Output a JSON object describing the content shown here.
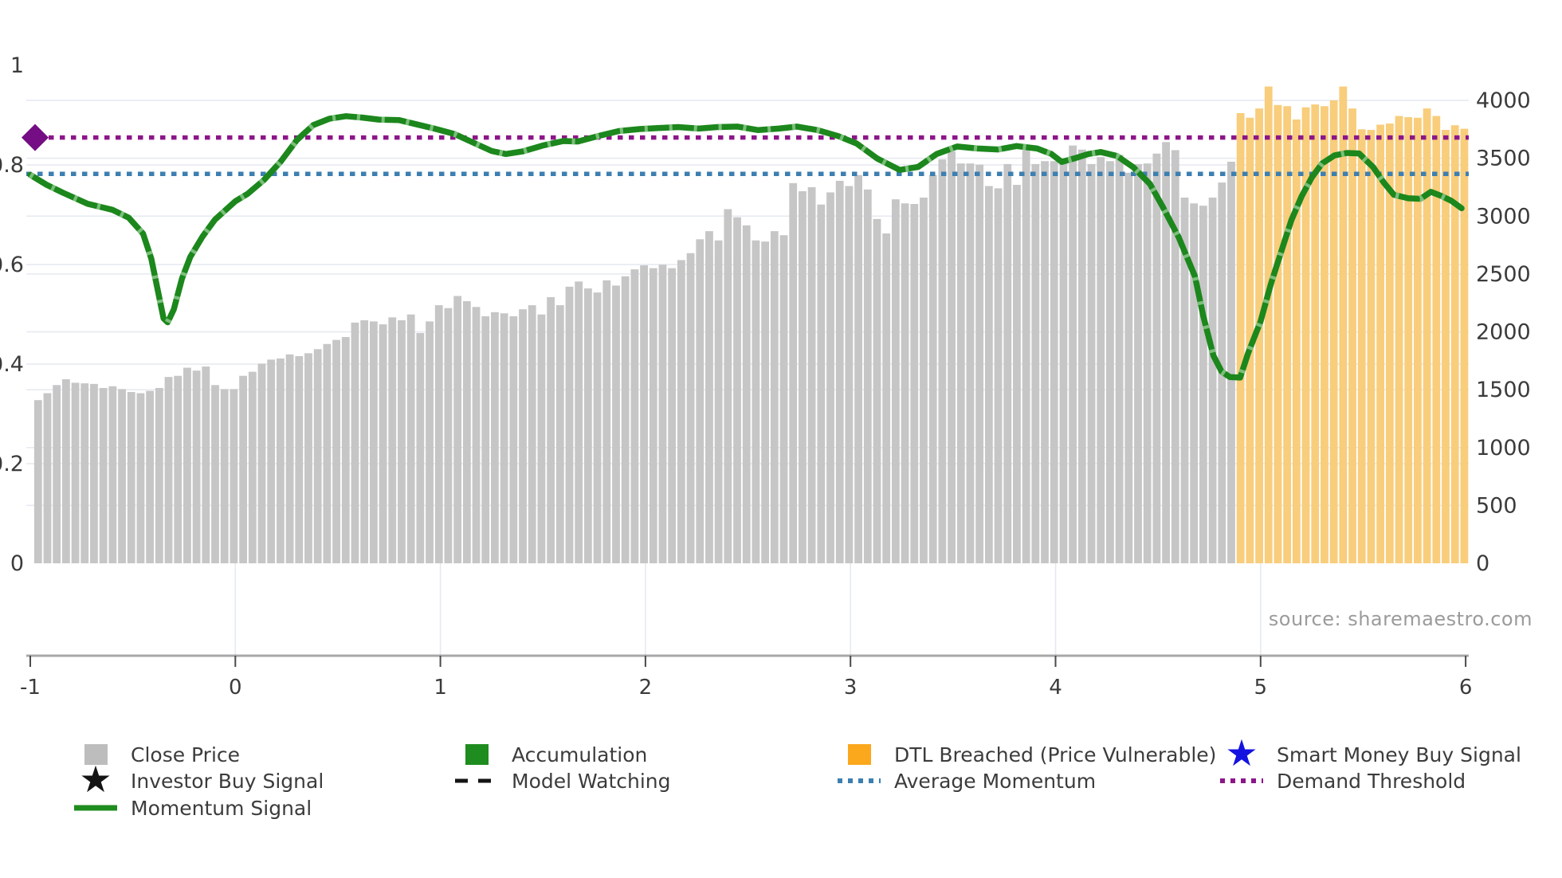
{
  "figure": {
    "source_text": "source: sharemaestro.com"
  },
  "colors": {
    "close_price_bar": "#c6c6c6",
    "dtl_breached_bar": "#f8cd7c",
    "dtl_breached_legend": "#fba81d",
    "close_price_legend": "#bdbdbd",
    "accumulation_green": "#1e8c1e",
    "momentum_line": "#1c871c",
    "momentum_light_overlay": "#8cc98c",
    "average_momentum_blue": "#3d7fb0",
    "demand_threshold_purple": "#8c1689",
    "investor_marker_purple": "#750d84",
    "smart_money_star_blue": "#1412e0",
    "black": "#141414",
    "grid_line": "#e6e9f0",
    "axis_spine": "#a8a8a8",
    "tick_text": "#3b3b3b",
    "source_text": "#9b9b9b"
  },
  "chart_data": {
    "type": "bar+line",
    "title": "",
    "xlabel": "",
    "ylabel_left": "",
    "ylabel_right": "",
    "grid": true,
    "legend_position": "below",
    "x_axis": {
      "min": -1,
      "max": 6,
      "ticks": [
        -1,
        0,
        1,
        2,
        3,
        4,
        5,
        6
      ],
      "tick_labels": [
        "-1",
        "0",
        "1",
        "2",
        "3",
        "4",
        "5",
        "6"
      ]
    },
    "left_axis": {
      "min": 0,
      "max": 1,
      "ticks": [
        0,
        0.2,
        0.4,
        0.6,
        0.8,
        1
      ],
      "tick_labels": [
        "0",
        "0.2",
        "0.4",
        "0.6",
        "0.8",
        "1"
      ]
    },
    "right_axis": {
      "min": 0,
      "max": 4000,
      "ticks": [
        0,
        500,
        1000,
        1500,
        2000,
        2500,
        3000,
        3500,
        4000
      ],
      "tick_labels": [
        "0",
        "500",
        "1000",
        "1500",
        "2000",
        "2500",
        "3000",
        "3500",
        "4000"
      ]
    },
    "close_price_bars": {
      "axis": "right",
      "x_start": -0.962,
      "x_step": 0.04546,
      "dtl_breached_start_index": 129,
      "values": [
        1410,
        1470,
        1540,
        1590,
        1560,
        1555,
        1550,
        1515,
        1530,
        1505,
        1480,
        1470,
        1490,
        1515,
        1610,
        1620,
        1690,
        1665,
        1700,
        1540,
        1505,
        1505,
        1620,
        1655,
        1725,
        1760,
        1770,
        1805,
        1790,
        1815,
        1850,
        1895,
        1930,
        1955,
        2080,
        2100,
        2090,
        2065,
        2125,
        2100,
        2150,
        1990,
        2090,
        2230,
        2205,
        2310,
        2265,
        2215,
        2135,
        2170,
        2160,
        2135,
        2195,
        2230,
        2150,
        2300,
        2230,
        2390,
        2435,
        2375,
        2340,
        2445,
        2400,
        2480,
        2540,
        2575,
        2550,
        2580,
        2550,
        2620,
        2680,
        2800,
        2870,
        2790,
        3060,
        2990,
        2920,
        2790,
        2780,
        2870,
        2835,
        3285,
        3215,
        3250,
        3100,
        3205,
        3305,
        3260,
        3355,
        3230,
        2975,
        2850,
        3145,
        3110,
        3105,
        3160,
        3355,
        3490,
        3560,
        3455,
        3455,
        3445,
        3260,
        3240,
        3450,
        3270,
        3570,
        3450,
        3475,
        3475,
        3500,
        3610,
        3575,
        3450,
        3510,
        3475,
        3530,
        3375,
        3450,
        3455,
        3540,
        3640,
        3570,
        3160,
        3110,
        3090,
        3160,
        3290,
        3470,
        3890,
        3850,
        3930,
        4120,
        3960,
        3950,
        3835,
        3940,
        3965,
        3950,
        4000,
        4120,
        3930,
        3750,
        3745,
        3790,
        3800,
        3865,
        3855,
        3850,
        3930,
        3865,
        3745,
        3785,
        3755
      ]
    },
    "momentum_signal": {
      "axis": "left",
      "points": [
        [
          -1.0,
          0.78
        ],
        [
          -0.92,
          0.76
        ],
        [
          -0.84,
          0.744
        ],
        [
          -0.72,
          0.722
        ],
        [
          -0.6,
          0.71
        ],
        [
          -0.52,
          0.694
        ],
        [
          -0.45,
          0.662
        ],
        [
          -0.41,
          0.612
        ],
        [
          -0.38,
          0.552
        ],
        [
          -0.35,
          0.492
        ],
        [
          -0.33,
          0.484
        ],
        [
          -0.3,
          0.51
        ],
        [
          -0.26,
          0.572
        ],
        [
          -0.22,
          0.615
        ],
        [
          -0.16,
          0.656
        ],
        [
          -0.1,
          0.69
        ],
        [
          0.0,
          0.727
        ],
        [
          0.06,
          0.742
        ],
        [
          0.14,
          0.77
        ],
        [
          0.22,
          0.806
        ],
        [
          0.3,
          0.85
        ],
        [
          0.38,
          0.88
        ],
        [
          0.46,
          0.893
        ],
        [
          0.54,
          0.898
        ],
        [
          0.62,
          0.895
        ],
        [
          0.7,
          0.891
        ],
        [
          0.8,
          0.89
        ],
        [
          0.88,
          0.882
        ],
        [
          0.97,
          0.873
        ],
        [
          1.07,
          0.862
        ],
        [
          1.17,
          0.843
        ],
        [
          1.25,
          0.828
        ],
        [
          1.32,
          0.822
        ],
        [
          1.4,
          0.827
        ],
        [
          1.5,
          0.839
        ],
        [
          1.6,
          0.848
        ],
        [
          1.67,
          0.847
        ],
        [
          1.77,
          0.858
        ],
        [
          1.87,
          0.868
        ],
        [
          1.97,
          0.872
        ],
        [
          2.06,
          0.874
        ],
        [
          2.16,
          0.876
        ],
        [
          2.26,
          0.873
        ],
        [
          2.35,
          0.876
        ],
        [
          2.45,
          0.877
        ],
        [
          2.55,
          0.87
        ],
        [
          2.65,
          0.873
        ],
        [
          2.74,
          0.877
        ],
        [
          2.84,
          0.87
        ],
        [
          2.94,
          0.858
        ],
        [
          3.03,
          0.843
        ],
        [
          3.13,
          0.813
        ],
        [
          3.24,
          0.79
        ],
        [
          3.33,
          0.796
        ],
        [
          3.42,
          0.822
        ],
        [
          3.52,
          0.837
        ],
        [
          3.62,
          0.833
        ],
        [
          3.72,
          0.831
        ],
        [
          3.81,
          0.838
        ],
        [
          3.91,
          0.833
        ],
        [
          3.98,
          0.822
        ],
        [
          4.03,
          0.806
        ],
        [
          4.09,
          0.813
        ],
        [
          4.16,
          0.822
        ],
        [
          4.22,
          0.826
        ],
        [
          4.3,
          0.818
        ],
        [
          4.38,
          0.795
        ],
        [
          4.46,
          0.762
        ],
        [
          4.52,
          0.718
        ],
        [
          4.6,
          0.655
        ],
        [
          4.68,
          0.576
        ],
        [
          4.72,
          0.497
        ],
        [
          4.77,
          0.417
        ],
        [
          4.81,
          0.385
        ],
        [
          4.85,
          0.374
        ],
        [
          4.9,
          0.373
        ],
        [
          4.94,
          0.423
        ],
        [
          5.0,
          0.486
        ],
        [
          5.05,
          0.561
        ],
        [
          5.1,
          0.625
        ],
        [
          5.15,
          0.689
        ],
        [
          5.2,
          0.737
        ],
        [
          5.25,
          0.775
        ],
        [
          5.3,
          0.803
        ],
        [
          5.36,
          0.819
        ],
        [
          5.42,
          0.824
        ],
        [
          5.48,
          0.823
        ],
        [
          5.55,
          0.795
        ],
        [
          5.6,
          0.765
        ],
        [
          5.65,
          0.74
        ],
        [
          5.72,
          0.733
        ],
        [
          5.78,
          0.732
        ],
        [
          5.83,
          0.746
        ],
        [
          5.88,
          0.738
        ],
        [
          5.93,
          0.728
        ],
        [
          5.98,
          0.713
        ]
      ]
    },
    "average_momentum": 0.782,
    "demand_threshold": 0.855,
    "investor_buy_marker": {
      "x": -1.0,
      "value": 0.855
    }
  },
  "legend": {
    "items": [
      {
        "label": "Close Price"
      },
      {
        "label": "Accumulation"
      },
      {
        "label": "DTL Breached (Price Vulnerable)"
      },
      {
        "label": "Smart Money Buy Signal"
      },
      {
        "label": "Investor Buy Signal"
      },
      {
        "label": "Model Watching"
      },
      {
        "label": "Average Momentum"
      },
      {
        "label": "Demand Threshold"
      },
      {
        "label": "Momentum Signal"
      }
    ]
  }
}
